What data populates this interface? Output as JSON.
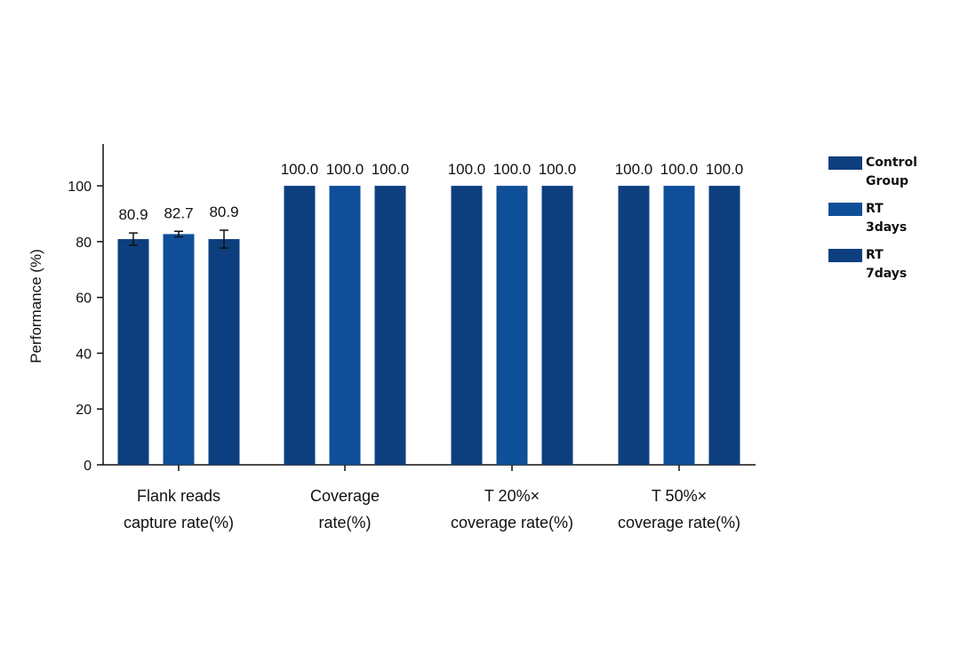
{
  "chart_data": {
    "type": "bar",
    "ylabel": "Performance (%)",
    "xlabel": "",
    "ylim": [
      0,
      115
    ],
    "yticks": [
      0,
      20,
      40,
      60,
      80,
      100
    ],
    "grid": false,
    "legend_position": "right",
    "categories": [
      [
        "Flank reads",
        "capture rate(%)"
      ],
      [
        "Coverage",
        "rate(%)"
      ],
      [
        "T 20%×",
        "coverage rate(%)"
      ],
      [
        "T 50%×",
        "coverage rate(%)"
      ]
    ],
    "series": [
      {
        "name": [
          "Control",
          "Group"
        ],
        "color": "#0d3f7f",
        "values": [
          80.9,
          100.0,
          100.0,
          100.0
        ],
        "labels": [
          "80.9",
          "100.0",
          "100.0",
          "100.0"
        ],
        "error": [
          2.2,
          0,
          0,
          0
        ]
      },
      {
        "name": [
          "RT",
          "3days"
        ],
        "color": "#0f4f99",
        "values": [
          82.7,
          100.0,
          100.0,
          100.0
        ],
        "labels": [
          "82.7",
          "100.0",
          "100.0",
          "100.0"
        ],
        "error": [
          1.0,
          0,
          0,
          0
        ]
      },
      {
        "name": [
          "RT",
          "7days"
        ],
        "color": "#0d3f7f",
        "values": [
          80.9,
          100.0,
          100.0,
          100.0
        ],
        "labels": [
          "80.9",
          "100.0",
          "100.0",
          "100.0"
        ],
        "error": [
          3.2,
          0,
          0,
          0
        ]
      }
    ]
  }
}
